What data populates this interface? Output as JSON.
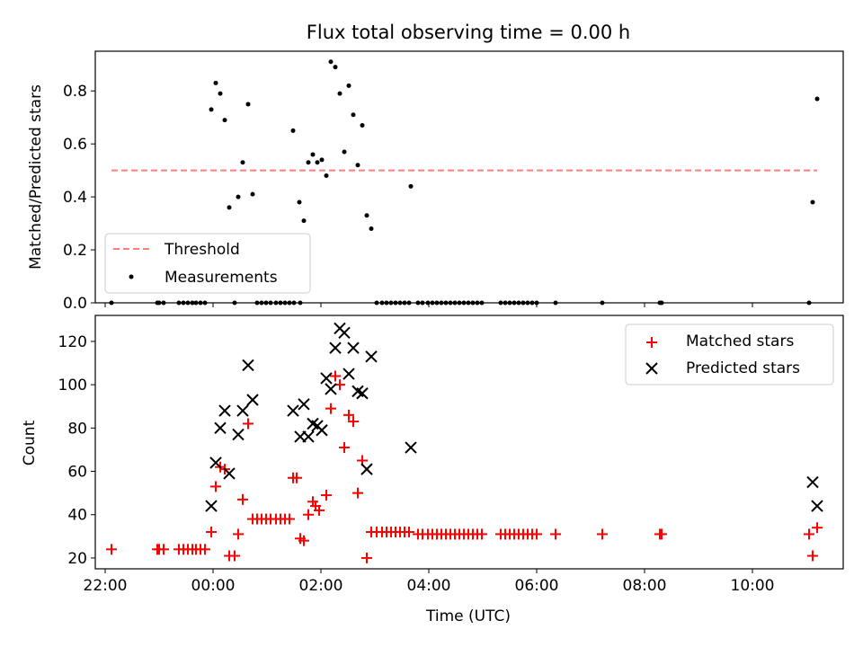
{
  "chart_data": [
    {
      "type": "line",
      "title": "Flux total observing time = 0.00 h",
      "xlabel": "",
      "ylabel": "Matched/Predicted stars",
      "xlim": [
        "21:49",
        "11:41"
      ],
      "ylim": [
        0,
        0.95
      ],
      "xticks": [
        "22:00",
        "00:00",
        "02:00",
        "04:00",
        "06:00",
        "08:00",
        "10:00"
      ],
      "yticks": [
        "0.0",
        "0.2",
        "0.4",
        "0.6",
        "0.8"
      ],
      "legend_position": "lower-left",
      "series": [
        {
          "name": "Threshold",
          "kind": "dashed-line",
          "color": "#ff7f7f",
          "points": [
            [
              "22:07",
              0.5
            ],
            [
              "11:12",
              0.5
            ]
          ]
        },
        {
          "name": "Measurements",
          "kind": "scatter",
          "color": "#000000",
          "points": [
            [
              "22:07",
              0.0
            ],
            [
              "22:58",
              0.0
            ],
            [
              "23:00",
              0.0
            ],
            [
              "23:05",
              0.0
            ],
            [
              "23:22",
              0.0
            ],
            [
              "23:27",
              0.0
            ],
            [
              "23:32",
              0.0
            ],
            [
              "23:37",
              0.0
            ],
            [
              "23:41",
              0.0
            ],
            [
              "23:46",
              0.0
            ],
            [
              "23:51",
              0.0
            ],
            [
              "23:58",
              0.73
            ],
            [
              "00:03",
              0.83
            ],
            [
              "00:08",
              0.79
            ],
            [
              "00:13",
              0.69
            ],
            [
              "00:18",
              0.36
            ],
            [
              "00:24",
              0.0
            ],
            [
              "00:28",
              0.4
            ],
            [
              "00:33",
              0.53
            ],
            [
              "00:39",
              0.75
            ],
            [
              "00:44",
              0.41
            ],
            [
              "00:49",
              0.0
            ],
            [
              "00:54",
              0.0
            ],
            [
              "00:59",
              0.0
            ],
            [
              "01:04",
              0.0
            ],
            [
              "01:10",
              0.0
            ],
            [
              "01:15",
              0.0
            ],
            [
              "01:20",
              0.0
            ],
            [
              "01:25",
              0.0
            ],
            [
              "01:30",
              0.0
            ],
            [
              "01:29",
              0.65
            ],
            [
              "01:36",
              0.38
            ],
            [
              "01:41",
              0.31
            ],
            [
              "01:46",
              0.53
            ],
            [
              "01:51",
              0.56
            ],
            [
              "01:56",
              0.53
            ],
            [
              "02:01",
              0.54
            ],
            [
              "02:06",
              0.48
            ],
            [
              "02:11",
              0.91
            ],
            [
              "02:16",
              0.89
            ],
            [
              "02:21",
              0.79
            ],
            [
              "02:26",
              0.57
            ],
            [
              "02:31",
              0.82
            ],
            [
              "02:36",
              0.71
            ],
            [
              "02:41",
              0.52
            ],
            [
              "02:46",
              0.67
            ],
            [
              "02:51",
              0.33
            ],
            [
              "02:56",
              0.28
            ],
            [
              "01:37",
              0.0
            ],
            [
              "03:02",
              0.0
            ],
            [
              "03:08",
              0.0
            ],
            [
              "03:13",
              0.0
            ],
            [
              "03:18",
              0.0
            ],
            [
              "03:23",
              0.0
            ],
            [
              "03:28",
              0.0
            ],
            [
              "03:33",
              0.0
            ],
            [
              "03:38",
              0.0
            ],
            [
              "03:40",
              0.44
            ],
            [
              "03:48",
              0.0
            ],
            [
              "03:53",
              0.0
            ],
            [
              "03:59",
              0.0
            ],
            [
              "04:04",
              0.0
            ],
            [
              "04:09",
              0.0
            ],
            [
              "04:14",
              0.0
            ],
            [
              "04:19",
              0.0
            ],
            [
              "04:24",
              0.0
            ],
            [
              "04:29",
              0.0
            ],
            [
              "04:34",
              0.0
            ],
            [
              "04:39",
              0.0
            ],
            [
              "04:44",
              0.0
            ],
            [
              "04:49",
              0.0
            ],
            [
              "04:54",
              0.0
            ],
            [
              "04:59",
              0.0
            ],
            [
              "05:20",
              0.0
            ],
            [
              "05:25",
              0.0
            ],
            [
              "05:30",
              0.0
            ],
            [
              "05:35",
              0.0
            ],
            [
              "05:40",
              0.0
            ],
            [
              "05:45",
              0.0
            ],
            [
              "05:50",
              0.0
            ],
            [
              "05:55",
              0.0
            ],
            [
              "06:00",
              0.0
            ],
            [
              "06:21",
              0.0
            ],
            [
              "07:13",
              0.0
            ],
            [
              "08:17",
              0.0
            ],
            [
              "08:19",
              0.0
            ],
            [
              "11:03",
              0.0
            ],
            [
              "11:07",
              0.38
            ],
            [
              "11:12",
              0.77
            ]
          ]
        }
      ]
    },
    {
      "type": "scatter",
      "title": "",
      "xlabel": "Time (UTC)",
      "ylabel": "Count",
      "xlim": [
        "21:49",
        "11:41"
      ],
      "ylim": [
        15,
        132
      ],
      "xticks": [
        "22:00",
        "00:00",
        "02:00",
        "04:00",
        "06:00",
        "08:00",
        "10:00"
      ],
      "yticks": [
        "20",
        "40",
        "60",
        "80",
        "100",
        "120"
      ],
      "legend_position": "top-right",
      "series": [
        {
          "name": "Matched stars",
          "marker": "plus",
          "color": "#ff0000",
          "points": [
            [
              "22:07",
              24
            ],
            [
              "22:58",
              24
            ],
            [
              "23:00",
              24
            ],
            [
              "23:05",
              24
            ],
            [
              "23:22",
              24
            ],
            [
              "23:27",
              24
            ],
            [
              "23:32",
              24
            ],
            [
              "23:37",
              24
            ],
            [
              "23:41",
              24
            ],
            [
              "23:46",
              24
            ],
            [
              "23:51",
              24
            ],
            [
              "23:58",
              32
            ],
            [
              "00:03",
              53
            ],
            [
              "00:08",
              62
            ],
            [
              "00:13",
              61
            ],
            [
              "00:18",
              21
            ],
            [
              "00:24",
              21
            ],
            [
              "00:28",
              31
            ],
            [
              "00:33",
              47
            ],
            [
              "00:39",
              82
            ],
            [
              "00:44",
              38
            ],
            [
              "00:49",
              38
            ],
            [
              "00:54",
              38
            ],
            [
              "00:59",
              38
            ],
            [
              "01:04",
              38
            ],
            [
              "01:10",
              38
            ],
            [
              "01:15",
              38
            ],
            [
              "01:20",
              38
            ],
            [
              "01:25",
              38
            ],
            [
              "01:29",
              57
            ],
            [
              "01:33",
              57
            ],
            [
              "01:37",
              29
            ],
            [
              "01:41",
              28
            ],
            [
              "01:46",
              40
            ],
            [
              "01:51",
              46
            ],
            [
              "01:54",
              44
            ],
            [
              "01:58",
              42
            ],
            [
              "02:06",
              49
            ],
            [
              "02:11",
              89
            ],
            [
              "02:16",
              104
            ],
            [
              "02:21",
              100
            ],
            [
              "02:26",
              71
            ],
            [
              "02:31",
              86
            ],
            [
              "02:36",
              83
            ],
            [
              "02:41",
              50
            ],
            [
              "02:46",
              65
            ],
            [
              "02:51",
              20
            ],
            [
              "02:56",
              32
            ],
            [
              "03:02",
              32
            ],
            [
              "03:08",
              32
            ],
            [
              "03:13",
              32
            ],
            [
              "03:18",
              32
            ],
            [
              "03:23",
              32
            ],
            [
              "03:28",
              32
            ],
            [
              "03:33",
              32
            ],
            [
              "03:38",
              32
            ],
            [
              "03:48",
              31
            ],
            [
              "03:53",
              31
            ],
            [
              "03:59",
              31
            ],
            [
              "04:04",
              31
            ],
            [
              "04:09",
              31
            ],
            [
              "04:14",
              31
            ],
            [
              "04:19",
              31
            ],
            [
              "04:24",
              31
            ],
            [
              "04:29",
              31
            ],
            [
              "04:34",
              31
            ],
            [
              "04:39",
              31
            ],
            [
              "04:44",
              31
            ],
            [
              "04:49",
              31
            ],
            [
              "04:54",
              31
            ],
            [
              "04:59",
              31
            ],
            [
              "05:20",
              31
            ],
            [
              "05:25",
              31
            ],
            [
              "05:30",
              31
            ],
            [
              "05:35",
              31
            ],
            [
              "05:40",
              31
            ],
            [
              "05:45",
              31
            ],
            [
              "05:50",
              31
            ],
            [
              "05:55",
              31
            ],
            [
              "06:00",
              31
            ],
            [
              "06:21",
              31
            ],
            [
              "07:13",
              31
            ],
            [
              "08:17",
              31
            ],
            [
              "08:19",
              31
            ],
            [
              "11:03",
              31
            ],
            [
              "11:07",
              21
            ],
            [
              "11:12",
              34
            ]
          ]
        },
        {
          "name": "Predicted stars",
          "marker": "x",
          "color": "#000000",
          "points": [
            [
              "23:58",
              44
            ],
            [
              "00:03",
              64
            ],
            [
              "00:08",
              80
            ],
            [
              "00:13",
              88
            ],
            [
              "00:18",
              59
            ],
            [
              "00:28",
              77
            ],
            [
              "00:33",
              88
            ],
            [
              "00:39",
              109
            ],
            [
              "00:44",
              93
            ],
            [
              "01:29",
              88
            ],
            [
              "01:37",
              76
            ],
            [
              "01:41",
              91
            ],
            [
              "01:46",
              76
            ],
            [
              "01:51",
              82
            ],
            [
              "01:56",
              81
            ],
            [
              "02:01",
              79
            ],
            [
              "02:06",
              103
            ],
            [
              "02:11",
              98
            ],
            [
              "02:16",
              117
            ],
            [
              "02:21",
              126
            ],
            [
              "02:26",
              124
            ],
            [
              "02:31",
              105
            ],
            [
              "02:36",
              117
            ],
            [
              "02:41",
              97
            ],
            [
              "02:46",
              96
            ],
            [
              "02:51",
              61
            ],
            [
              "02:56",
              113
            ],
            [
              "03:40",
              71
            ],
            [
              "11:07",
              55
            ],
            [
              "11:12",
              44
            ]
          ]
        }
      ]
    }
  ]
}
